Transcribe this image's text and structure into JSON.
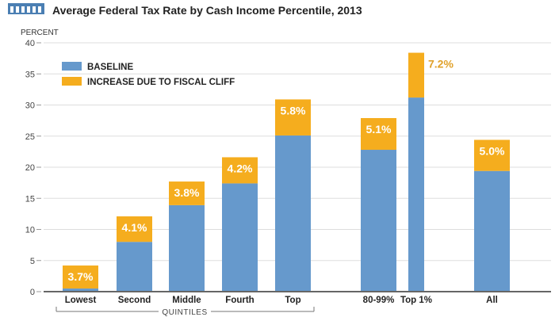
{
  "title": "Average Federal Tax Rate by Cash Income Percentile, 2013",
  "chart_data": {
    "type": "bar",
    "stacked": true,
    "title": "Average Federal Tax Rate by Cash Income Percentile, 2013",
    "ylabel": "PERCENT",
    "xlabel": "",
    "ylim": [
      0,
      40
    ],
    "yticks": [
      0,
      5,
      10,
      15,
      20,
      25,
      30,
      35,
      40
    ],
    "grid": true,
    "legend_position": "top-left",
    "categories": [
      "Lowest",
      "Second",
      "Middle",
      "Fourth",
      "Top",
      "80-99%",
      "Top 1%",
      "All"
    ],
    "group_label": "QUINTILES",
    "series": [
      {
        "name": "BASELINE",
        "color": "#6699cc",
        "values": [
          0.5,
          8.0,
          13.9,
          17.4,
          25.1,
          22.8,
          31.2,
          19.4
        ]
      },
      {
        "name": "INCREASE DUE TO FISCAL CLIFF",
        "color": "#f5ad1e",
        "values": [
          3.7,
          4.1,
          3.8,
          4.2,
          5.8,
          5.1,
          7.2,
          5.0
        ]
      }
    ],
    "data_labels": [
      "3.7%",
      "4.1%",
      "3.8%",
      "4.2%",
      "5.8%",
      "5.1%",
      "7.2%",
      "5.0%"
    ]
  }
}
